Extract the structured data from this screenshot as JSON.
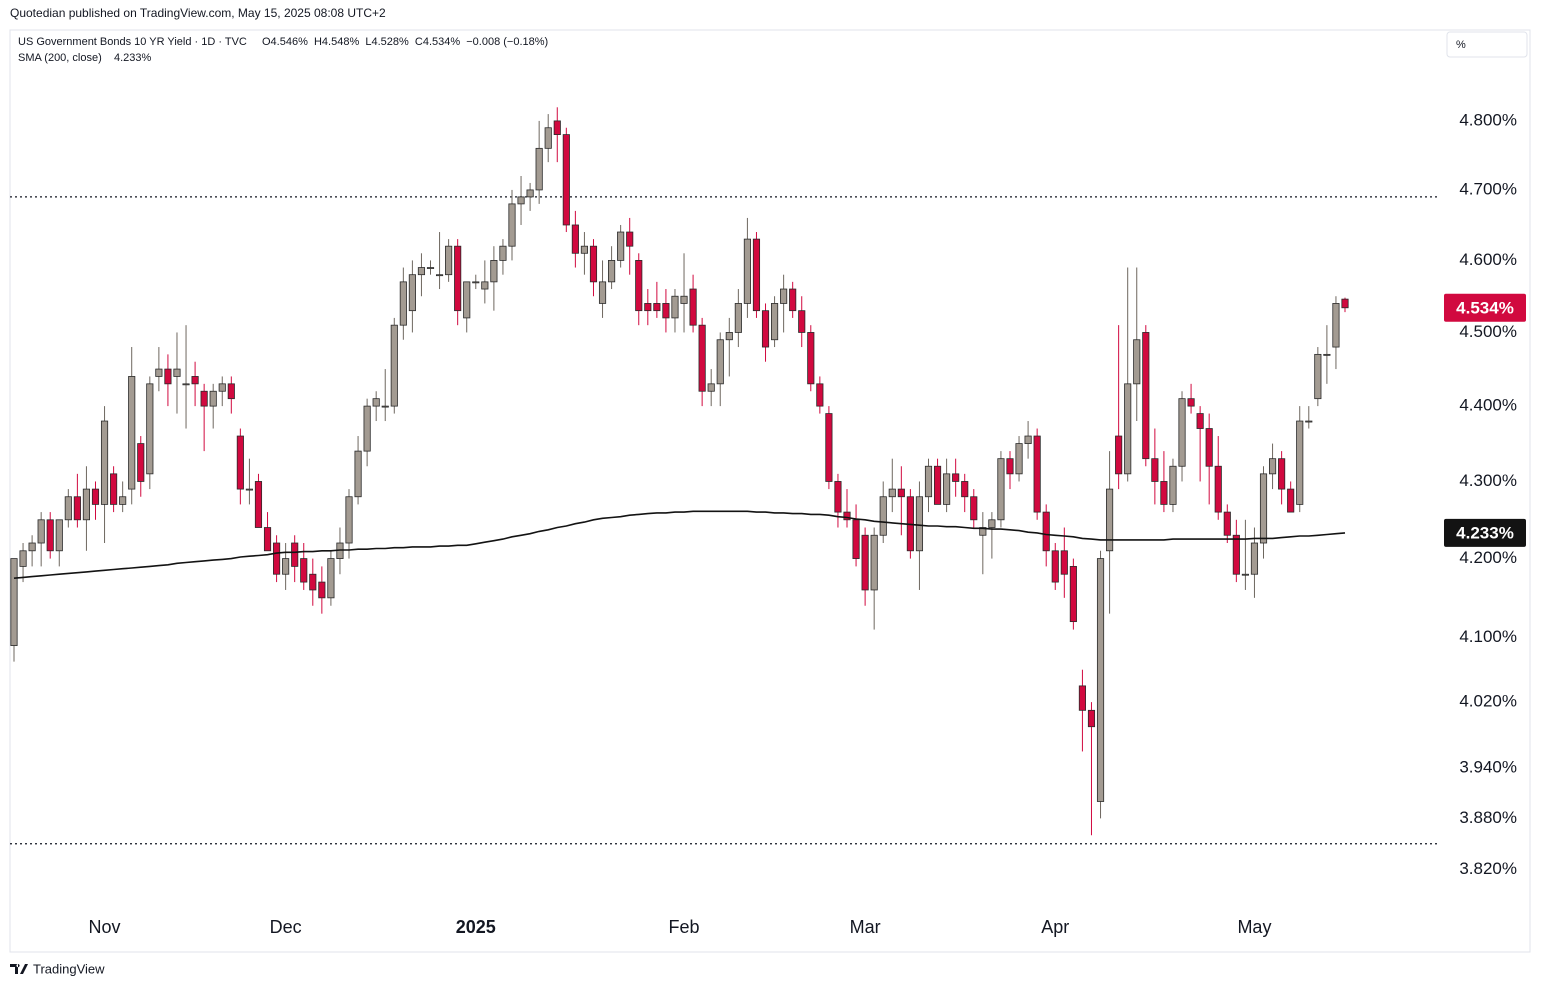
{
  "chart_data": {
    "type": "candlestick",
    "publisher": "Quotedian published on TradingView.com, May 15, 2025 08:08 UTC+2",
    "title": "US Government Bonds 10 YR Yield · 1D · TVC",
    "ohlc_text": "O4.546%  H4.548%  L4.528%  C4.534%  −0.008 (−0.18%)",
    "indicator": "SMA (200, close)",
    "indicator_value": "4.233%",
    "scale_button": "%",
    "footer": "TradingView",
    "last_price_label": "4.534%",
    "sma_label": "4.233%",
    "log_scale": true,
    "up_color": "#a39b92",
    "down_color": "#d1093f",
    "sma_color": "#131313",
    "ylim": [
      3.773,
      4.935
    ],
    "yticks": [
      {
        "value": 3.82,
        "label": "3.820%"
      },
      {
        "value": 3.88,
        "label": "3.880%"
      },
      {
        "value": 3.94,
        "label": "3.940%"
      },
      {
        "value": 4.02,
        "label": "4.020%"
      },
      {
        "value": 4.1,
        "label": "4.100%"
      },
      {
        "value": 4.2,
        "label": "4.200%"
      },
      {
        "value": 4.3,
        "label": "4.300%"
      },
      {
        "value": 4.4,
        "label": "4.400%"
      },
      {
        "value": 4.5,
        "label": "4.500%"
      },
      {
        "value": 4.6,
        "label": "4.600%"
      },
      {
        "value": 4.7,
        "label": "4.700%"
      },
      {
        "value": 4.8,
        "label": "4.800%"
      }
    ],
    "levels": [
      4.69,
      3.85
    ],
    "categories": [
      null,
      null,
      null,
      null,
      null,
      null,
      null,
      null,
      null,
      null,
      "Nov",
      null,
      null,
      null,
      null,
      null,
      null,
      null,
      null,
      null,
      null,
      null,
      null,
      null,
      null,
      null,
      null,
      null,
      null,
      null,
      "Dec",
      null,
      null,
      null,
      null,
      null,
      null,
      null,
      null,
      null,
      null,
      null,
      null,
      null,
      null,
      null,
      null,
      null,
      null,
      null,
      null,
      "2025",
      null,
      null,
      null,
      null,
      null,
      null,
      null,
      null,
      null,
      null,
      null,
      null,
      null,
      null,
      null,
      null,
      null,
      null,
      null,
      null,
      null,
      null,
      "Feb",
      null,
      null,
      null,
      null,
      null,
      null,
      null,
      null,
      null,
      null,
      null,
      null,
      null,
      null,
      null,
      null,
      null,
      null,
      null,
      "Mar",
      null,
      null,
      null,
      null,
      null,
      null,
      null,
      null,
      null,
      null,
      null,
      null,
      null,
      null,
      null,
      null,
      null,
      null,
      null,
      null,
      "Apr",
      null,
      null,
      null,
      null,
      null,
      null,
      null,
      null,
      null,
      null,
      null,
      null,
      null,
      null,
      null,
      null,
      null,
      null,
      null,
      null,
      null,
      "May",
      null,
      null,
      null,
      null,
      null,
      null,
      null,
      null,
      null,
      null
    ],
    "open": [
      4.09,
      4.19,
      4.21,
      4.22,
      4.25,
      4.21,
      4.25,
      4.28,
      4.25,
      4.29,
      4.27,
      4.31,
      4.27,
      4.29,
      4.35,
      4.31,
      4.44,
      4.45,
      4.44,
      4.43,
      4.44,
      4.42,
      4.4,
      4.42,
      4.43,
      4.36,
      4.29,
      4.3,
      4.24,
      4.22,
      4.18,
      4.22,
      4.2,
      4.18,
      4.17,
      4.15,
      4.2,
      4.22,
      4.28,
      4.34,
      4.4,
      4.4,
      4.4,
      4.51,
      4.53,
      4.58,
      4.59,
      4.58,
      4.58,
      4.62,
      4.52,
      4.57,
      4.56,
      4.57,
      4.6,
      4.62,
      4.68,
      4.69,
      4.7,
      4.76,
      4.8,
      4.78,
      4.65,
      4.61,
      4.62,
      4.54,
      4.57,
      4.6,
      4.64,
      4.6,
      4.54,
      4.54,
      4.54,
      4.52,
      4.54,
      4.56,
      4.51,
      4.42,
      4.43,
      4.49,
      4.5,
      4.54,
      4.63,
      4.53,
      4.49,
      4.54,
      4.56,
      4.53,
      4.5,
      4.43,
      4.39,
      4.3,
      4.26,
      4.25,
      4.23,
      4.16,
      4.23,
      4.28,
      4.29,
      4.28,
      4.21,
      4.28,
      4.32,
      4.27,
      4.31,
      4.3,
      4.28,
      4.23,
      4.24,
      4.25,
      4.33,
      4.31,
      4.35,
      4.36,
      4.26,
      4.21,
      4.21,
      4.19,
      4.04,
      4.01,
      3.9,
      4.21,
      4.36,
      4.31,
      4.43,
      4.5,
      4.33,
      4.3,
      4.27,
      4.32,
      4.41,
      4.39,
      4.37,
      4.32,
      4.26,
      4.23,
      4.18,
      4.18,
      4.22,
      4.31,
      4.33,
      4.29,
      4.27,
      4.38,
      4.41,
      4.47,
      4.48,
      4.546
    ],
    "high": [
      4.2,
      4.22,
      4.23,
      4.26,
      4.26,
      4.25,
      4.29,
      4.31,
      4.32,
      4.3,
      4.4,
      4.32,
      4.3,
      4.48,
      4.36,
      4.44,
      4.48,
      4.47,
      4.5,
      4.51,
      4.46,
      4.43,
      4.43,
      4.44,
      4.44,
      4.37,
      4.33,
      4.31,
      4.26,
      4.23,
      4.22,
      4.23,
      4.22,
      4.2,
      4.19,
      4.21,
      4.24,
      4.29,
      4.36,
      4.41,
      4.42,
      4.45,
      4.52,
      4.59,
      4.6,
      4.61,
      4.6,
      4.64,
      4.63,
      4.63,
      4.57,
      4.58,
      4.6,
      4.62,
      4.63,
      4.7,
      4.72,
      4.71,
      4.8,
      4.81,
      4.82,
      4.79,
      4.67,
      4.64,
      4.63,
      4.6,
      4.62,
      4.65,
      4.66,
      4.61,
      4.56,
      4.57,
      4.56,
      4.56,
      4.61,
      4.58,
      4.52,
      4.45,
      4.5,
      4.52,
      4.56,
      4.66,
      4.64,
      4.54,
      4.55,
      4.58,
      4.57,
      4.55,
      4.51,
      4.44,
      4.4,
      4.31,
      4.29,
      4.27,
      4.24,
      4.24,
      4.3,
      4.33,
      4.32,
      4.29,
      4.3,
      4.33,
      4.33,
      4.33,
      4.33,
      4.31,
      4.29,
      4.26,
      4.26,
      4.34,
      4.34,
      4.36,
      4.38,
      4.37,
      4.27,
      4.22,
      4.24,
      4.2,
      4.06,
      4.02,
      4.21,
      4.34,
      4.51,
      4.59,
      4.59,
      4.51,
      4.37,
      4.34,
      4.33,
      4.42,
      4.43,
      4.4,
      4.39,
      4.36,
      4.27,
      4.25,
      4.25,
      4.24,
      4.32,
      4.35,
      4.34,
      4.3,
      4.4,
      4.4,
      4.48,
      4.51,
      4.55,
      4.548
    ],
    "low": [
      4.07,
      4.17,
      4.19,
      4.19,
      4.2,
      4.19,
      4.24,
      4.24,
      4.21,
      4.25,
      4.22,
      4.26,
      4.26,
      4.27,
      4.28,
      4.29,
      4.42,
      4.4,
      4.39,
      4.37,
      4.4,
      4.34,
      4.37,
      4.4,
      4.39,
      4.27,
      4.27,
      4.24,
      4.21,
      4.17,
      4.16,
      4.17,
      4.16,
      4.14,
      4.13,
      4.14,
      4.18,
      4.2,
      4.27,
      4.32,
      4.38,
      4.38,
      4.39,
      4.49,
      4.5,
      4.55,
      4.58,
      4.56,
      4.57,
      4.51,
      4.5,
      4.56,
      4.54,
      4.53,
      4.58,
      4.6,
      4.65,
      4.67,
      4.68,
      4.74,
      4.74,
      4.64,
      4.59,
      4.58,
      4.55,
      4.52,
      4.56,
      4.59,
      4.58,
      4.51,
      4.51,
      4.52,
      4.5,
      4.5,
      4.5,
      4.5,
      4.4,
      4.4,
      4.4,
      4.44,
      4.48,
      4.52,
      4.52,
      4.46,
      4.48,
      4.5,
      4.52,
      4.48,
      4.42,
      4.39,
      4.29,
      4.24,
      4.24,
      4.19,
      4.14,
      4.11,
      4.22,
      4.26,
      4.23,
      4.2,
      4.16,
      4.26,
      4.27,
      4.26,
      4.28,
      4.26,
      4.24,
      4.18,
      4.2,
      4.24,
      4.29,
      4.3,
      4.33,
      4.25,
      4.19,
      4.16,
      4.15,
      4.11,
      3.96,
      3.86,
      3.88,
      4.13,
      4.29,
      4.3,
      4.38,
      4.32,
      4.27,
      4.26,
      4.26,
      4.3,
      4.39,
      4.3,
      4.27,
      4.25,
      4.22,
      4.17,
      4.16,
      4.15,
      4.2,
      4.29,
      4.27,
      4.26,
      4.26,
      4.37,
      4.4,
      4.43,
      4.45,
      4.528
    ],
    "close": [
      4.2,
      4.21,
      4.22,
      4.25,
      4.21,
      4.25,
      4.28,
      4.25,
      4.29,
      4.27,
      4.38,
      4.27,
      4.28,
      4.44,
      4.3,
      4.43,
      4.45,
      4.43,
      4.45,
      4.43,
      4.43,
      4.4,
      4.42,
      4.43,
      4.41,
      4.29,
      4.29,
      4.24,
      4.21,
      4.18,
      4.2,
      4.19,
      4.17,
      4.16,
      4.15,
      4.2,
      4.22,
      4.28,
      4.34,
      4.4,
      4.41,
      4.4,
      4.51,
      4.57,
      4.58,
      4.59,
      4.59,
      4.58,
      4.62,
      4.53,
      4.57,
      4.57,
      4.57,
      4.6,
      4.62,
      4.68,
      4.69,
      4.7,
      4.76,
      4.79,
      4.78,
      4.65,
      4.61,
      4.62,
      4.57,
      4.57,
      4.6,
      4.64,
      4.62,
      4.53,
      4.53,
      4.53,
      4.52,
      4.55,
      4.55,
      4.51,
      4.42,
      4.43,
      4.49,
      4.5,
      4.54,
      4.63,
      4.53,
      4.48,
      4.54,
      4.56,
      4.53,
      4.5,
      4.43,
      4.4,
      4.3,
      4.26,
      4.25,
      4.2,
      4.16,
      4.23,
      4.28,
      4.29,
      4.28,
      4.21,
      4.28,
      4.32,
      4.27,
      4.31,
      4.3,
      4.28,
      4.25,
      4.24,
      4.25,
      4.33,
      4.31,
      4.35,
      4.36,
      4.26,
      4.21,
      4.17,
      4.18,
      4.12,
      4.01,
      3.99,
      4.2,
      4.29,
      4.31,
      4.43,
      4.49,
      4.33,
      4.3,
      4.27,
      4.32,
      4.41,
      4.4,
      4.37,
      4.32,
      4.26,
      4.23,
      4.18,
      4.18,
      4.22,
      4.31,
      4.33,
      4.29,
      4.26,
      4.38,
      4.38,
      4.47,
      4.47,
      4.54,
      4.534
    ],
    "sma": [
      4.175,
      4.176,
      4.177,
      4.178,
      4.179,
      4.18,
      4.181,
      4.182,
      4.183,
      4.184,
      4.185,
      4.186,
      4.187,
      4.188,
      4.189,
      4.19,
      4.191,
      4.192,
      4.194,
      4.195,
      4.196,
      4.197,
      4.198,
      4.199,
      4.2,
      4.202,
      4.203,
      4.204,
      4.205,
      4.207,
      4.208,
      4.208,
      4.209,
      4.209,
      4.21,
      4.21,
      4.211,
      4.211,
      4.212,
      4.212,
      4.213,
      4.213,
      4.214,
      4.214,
      4.215,
      4.215,
      4.215,
      4.216,
      4.216,
      4.217,
      4.217,
      4.219,
      4.221,
      4.223,
      4.225,
      4.228,
      4.23,
      4.232,
      4.235,
      4.237,
      4.24,
      4.242,
      4.245,
      4.247,
      4.25,
      4.252,
      4.253,
      4.254,
      4.256,
      4.257,
      4.258,
      4.259,
      4.259,
      4.26,
      4.26,
      4.261,
      4.261,
      4.261,
      4.261,
      4.261,
      4.261,
      4.261,
      4.26,
      4.26,
      4.259,
      4.259,
      4.258,
      4.258,
      4.257,
      4.257,
      4.256,
      4.254,
      4.253,
      4.251,
      4.25,
      4.248,
      4.247,
      4.246,
      4.245,
      4.244,
      4.243,
      4.242,
      4.242,
      4.241,
      4.241,
      4.24,
      4.239,
      4.239,
      4.238,
      4.238,
      4.237,
      4.236,
      4.234,
      4.233,
      4.231,
      4.23,
      4.229,
      4.228,
      4.226,
      4.225,
      4.224,
      4.224,
      4.224,
      4.224,
      4.224,
      4.224,
      4.224,
      4.224,
      4.225,
      4.225,
      4.225,
      4.225,
      4.225,
      4.225,
      4.225,
      4.225,
      4.225,
      4.226,
      4.226,
      4.226,
      4.227,
      4.228,
      4.229,
      4.229,
      4.23,
      4.231,
      4.232,
      4.233
    ]
  }
}
